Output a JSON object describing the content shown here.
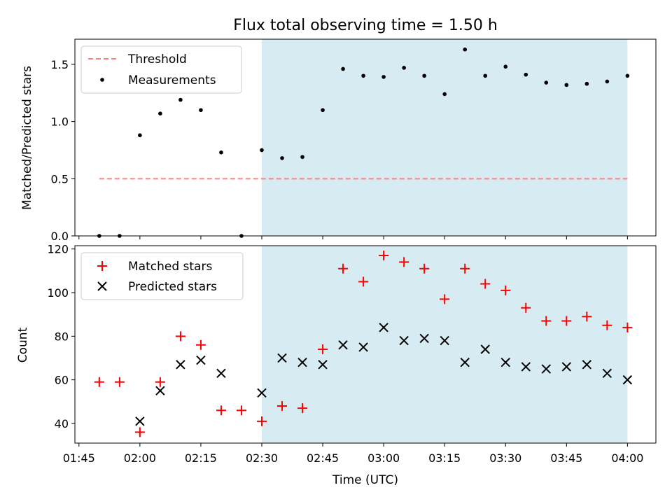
{
  "chart_data": {
    "type": "scatter",
    "title": "Flux total observing time = 1.50 h",
    "xlabel": "Time (UTC)",
    "x_ticks": [
      "01:45",
      "02:00",
      "02:15",
      "02:30",
      "02:45",
      "03:00",
      "03:15",
      "03:30",
      "03:45",
      "04:00"
    ],
    "x_range": [
      "01:44",
      "04:07"
    ],
    "observing_window": {
      "start": "02:30",
      "end": "04:00",
      "color": "#add8e6"
    },
    "x": [
      "01:50",
      "01:55",
      "02:00",
      "02:05",
      "02:10",
      "02:15",
      "02:20",
      "02:25",
      "02:30",
      "02:35",
      "02:40",
      "02:45",
      "02:50",
      "02:55",
      "03:00",
      "03:05",
      "03:10",
      "03:15",
      "03:20",
      "03:25",
      "03:30",
      "03:35",
      "03:40",
      "03:45",
      "03:50",
      "03:55",
      "04:00"
    ],
    "top_panel": {
      "ylabel": "Matched/Predicted stars",
      "ylim": [
        0,
        1.72
      ],
      "y_ticks": [
        "0.0",
        "0.5",
        "1.0",
        "1.5"
      ],
      "y_tick_values": [
        0,
        0.5,
        1.0,
        1.5
      ],
      "legend_position": "upper-left",
      "threshold": {
        "name": "Threshold",
        "value": 0.5,
        "x_start": "01:50",
        "x_end": "04:00",
        "color": "#ff7f7f"
      },
      "measurements": {
        "name": "Measurements",
        "color": "#000000",
        "values": [
          0,
          0,
          0.88,
          1.07,
          1.19,
          1.1,
          0.73,
          0,
          0.75,
          0.68,
          0.69,
          1.1,
          1.46,
          1.4,
          1.39,
          1.47,
          1.4,
          1.24,
          1.63,
          1.4,
          1.48,
          1.41,
          1.34,
          1.32,
          1.33,
          1.35,
          1.4
        ]
      }
    },
    "bottom_panel": {
      "ylabel": "Count",
      "ylim": [
        31,
        121.5
      ],
      "y_ticks": [
        "40",
        "60",
        "80",
        "100",
        "120"
      ],
      "y_tick_values": [
        40,
        60,
        80,
        100,
        120
      ],
      "legend_position": "upper-left",
      "series": [
        {
          "name": "Matched stars",
          "marker": "plus",
          "color": "#ff0000",
          "values": [
            59,
            59,
            36,
            59,
            80,
            76,
            46,
            46,
            41,
            48,
            47,
            74,
            111,
            105,
            117,
            114,
            111,
            97,
            111,
            104,
            101,
            93,
            87,
            87,
            89,
            85,
            84
          ]
        },
        {
          "name": "Predicted stars",
          "marker": "x",
          "color": "#000000",
          "values": [
            null,
            null,
            41,
            55,
            67,
            69,
            63,
            null,
            54,
            70,
            68,
            67,
            76,
            75,
            84,
            78,
            79,
            78,
            68,
            74,
            68,
            66,
            65,
            66,
            67,
            63,
            60
          ]
        }
      ]
    }
  }
}
